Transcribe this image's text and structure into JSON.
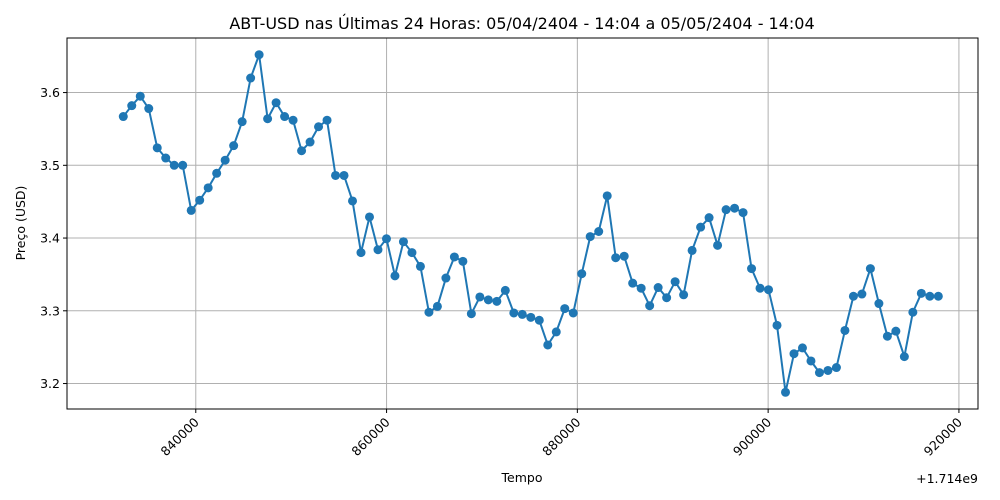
{
  "chart_data": {
    "type": "line",
    "title": "ABT-USD nas Últimas 24 Horas: 05/04/2404 - 14:04 a 05/05/2404 - 14:04",
    "xlabel": "Tempo",
    "ylabel": "Preço (USD)",
    "x_offset_label": "+1.714e9",
    "xlim": [
      826500,
      922000
    ],
    "ylim": [
      3.165,
      3.675
    ],
    "x_ticks": [
      840000,
      860000,
      880000,
      900000,
      920000
    ],
    "x_tick_labels": [
      "840000",
      "860000",
      "880000",
      "900000",
      "920000"
    ],
    "y_ticks": [
      3.2,
      3.3,
      3.4,
      3.5,
      3.6
    ],
    "y_tick_labels": [
      "3.2",
      "3.3",
      "3.4",
      "3.5",
      "3.6"
    ],
    "grid": true,
    "colors": {
      "series": "#1f77b4",
      "grid": "#b0b0b0"
    },
    "series": [
      {
        "x": [
          832400,
          833290,
          834180,
          835070,
          835960,
          836850,
          837740,
          838630,
          839520,
          840410,
          841300,
          842190,
          843080,
          843970,
          844860,
          845750,
          846640,
          847530,
          848420,
          849310,
          850200,
          851090,
          851980,
          852870,
          853760,
          854650,
          855540,
          856430,
          857320,
          858210,
          859100,
          859990,
          860880,
          861770,
          862660,
          863550,
          864440,
          865330,
          866220,
          867110,
          868000,
          868890,
          869780,
          870670,
          871560,
          872450,
          873340,
          874230,
          875120,
          876010,
          876900,
          877790,
          878680,
          879570,
          880460,
          881350,
          882240,
          883130,
          884020,
          884910,
          885800,
          886690,
          887580,
          888470,
          889360,
          890250,
          891140,
          892030,
          892920,
          893810,
          894700,
          895590,
          896480,
          897370,
          898260,
          899150,
          900040,
          900930,
          901820,
          902710,
          903600,
          904490,
          905380,
          906270,
          907160,
          908050,
          908940,
          909830,
          910720,
          911610,
          912500,
          913390,
          914280,
          915170,
          916060,
          916950,
          917840
        ],
        "values": [
          3.567,
          3.582,
          3.595,
          3.578,
          3.524,
          3.51,
          3.5,
          3.5,
          3.438,
          3.452,
          3.469,
          3.489,
          3.507,
          3.527,
          3.56,
          3.62,
          3.652,
          3.564,
          3.586,
          3.567,
          3.562,
          3.52,
          3.532,
          3.553,
          3.562,
          3.486,
          3.486,
          3.451,
          3.38,
          3.429,
          3.384,
          3.399,
          3.348,
          3.395,
          3.38,
          3.361,
          3.298,
          3.306,
          3.345,
          3.374,
          3.368,
          3.296,
          3.319,
          3.315,
          3.313,
          3.328,
          3.297,
          3.295,
          3.291,
          3.287,
          3.253,
          3.271,
          3.303,
          3.297,
          3.351,
          3.402,
          3.409,
          3.458,
          3.373,
          3.375,
          3.338,
          3.331,
          3.307,
          3.332,
          3.318,
          3.34,
          3.322,
          3.383,
          3.415,
          3.428,
          3.39,
          3.439,
          3.441,
          3.435,
          3.358,
          3.331,
          3.329,
          3.28,
          3.188,
          3.241,
          3.249,
          3.231,
          3.215,
          3.218,
          3.222,
          3.273,
          3.32,
          3.323,
          3.358,
          3.31,
          3.265,
          3.272,
          3.237,
          3.298,
          3.324,
          3.32,
          3.32
        ]
      }
    ]
  }
}
